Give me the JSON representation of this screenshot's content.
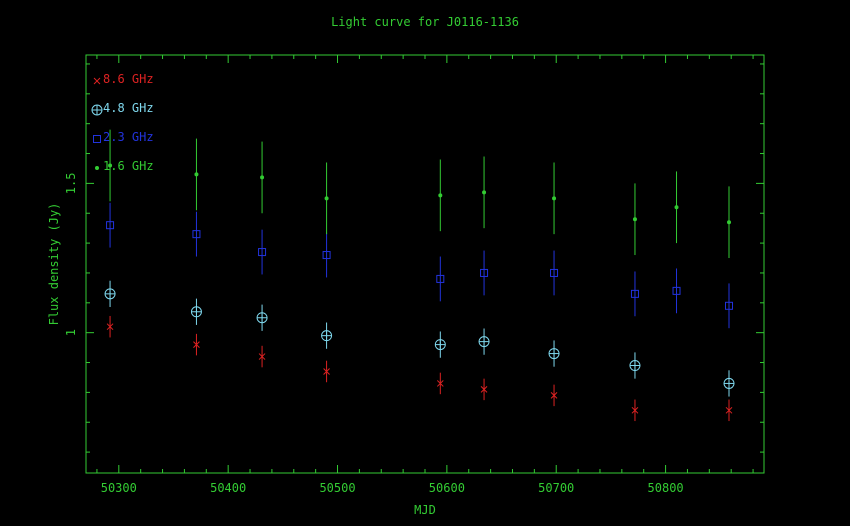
{
  "colors": {
    "background": "#000000",
    "axes": "#33cc33",
    "text": "#33cc33",
    "s86": "#dd2222",
    "s48": "#7fd8ee",
    "s23": "#2233dd",
    "s16": "#33cc33"
  },
  "chart_data": {
    "type": "scatter",
    "title": "Light curve for J0116-1136",
    "xlabel": "MJD",
    "ylabel": "Flux density (Jy)",
    "xlim": [
      50270,
      50890
    ],
    "ylim": [
      0.53,
      1.93
    ],
    "x_ticks": [
      50300,
      50400,
      50500,
      50600,
      50700,
      50800
    ],
    "y_ticks": [
      1,
      1.5
    ],
    "y_tick_labels": [
      "1",
      "1.5"
    ],
    "log_scale": false,
    "grid": false,
    "legend_position": "top-left",
    "error_bars": true,
    "series": [
      {
        "name": "8.6 GHz",
        "marker": "x",
        "color_key": "s86",
        "x": [
          50292,
          50371,
          50431,
          50490,
          50594,
          50634,
          50698,
          50772,
          50858
        ],
        "y": [
          1.02,
          0.96,
          0.92,
          0.87,
          0.83,
          0.81,
          0.79,
          0.74,
          0.74
        ],
        "err": [
          0.036,
          0.036,
          0.036,
          0.036,
          0.036,
          0.036,
          0.036,
          0.036,
          0.036
        ]
      },
      {
        "name": "4.8 GHz",
        "marker": "circle-plus",
        "color_key": "s48",
        "x": [
          50292,
          50371,
          50431,
          50490,
          50594,
          50634,
          50698,
          50772,
          50858
        ],
        "y": [
          1.13,
          1.07,
          1.05,
          0.99,
          0.96,
          0.97,
          0.93,
          0.89,
          0.83
        ],
        "err": [
          0.044,
          0.044,
          0.044,
          0.044,
          0.044,
          0.044,
          0.044,
          0.044,
          0.044
        ]
      },
      {
        "name": "2.3 GHz",
        "marker": "square",
        "color_key": "s23",
        "x": [
          50292,
          50371,
          50431,
          50490,
          50594,
          50634,
          50698,
          50772,
          50810,
          50858
        ],
        "y": [
          1.36,
          1.33,
          1.27,
          1.26,
          1.18,
          1.2,
          1.2,
          1.13,
          1.14,
          1.09
        ],
        "err": [
          0.075,
          0.075,
          0.075,
          0.075,
          0.075,
          0.075,
          0.075,
          0.075,
          0.075,
          0.075
        ]
      },
      {
        "name": "1.6 GHz",
        "marker": "dot",
        "color_key": "s16",
        "x": [
          50292,
          50371,
          50431,
          50490,
          50594,
          50634,
          50698,
          50772,
          50810,
          50858
        ],
        "y": [
          1.56,
          1.53,
          1.52,
          1.45,
          1.46,
          1.47,
          1.45,
          1.38,
          1.42,
          1.37
        ],
        "err": [
          0.12,
          0.12,
          0.12,
          0.12,
          0.12,
          0.12,
          0.12,
          0.12,
          0.12,
          0.12
        ]
      }
    ]
  }
}
